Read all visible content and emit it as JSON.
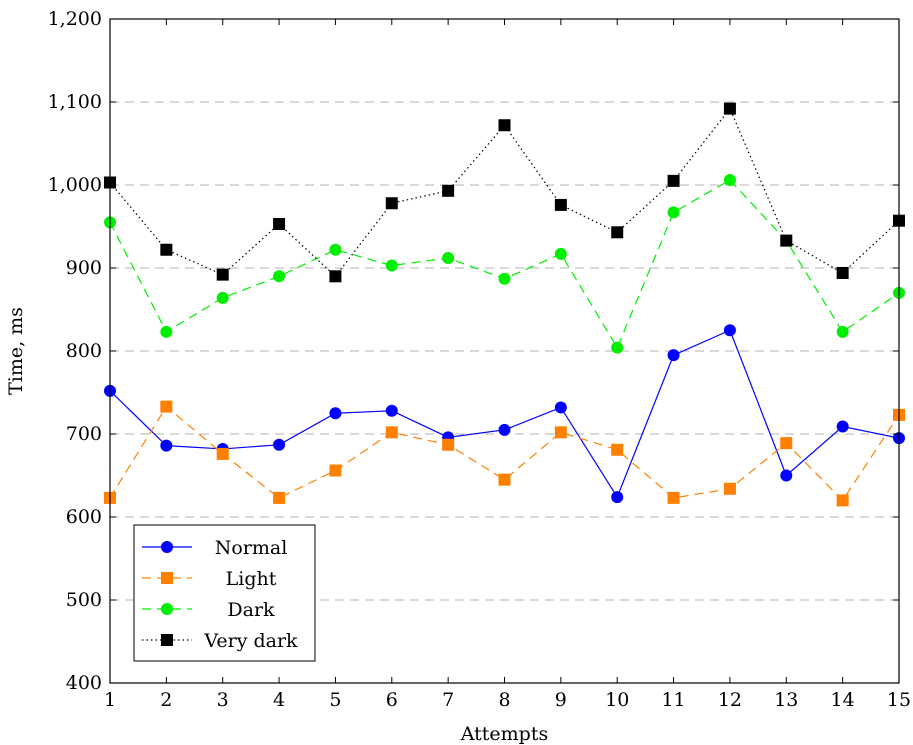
{
  "chart_data": {
    "type": "line",
    "title": "",
    "xlabel": "Attempts",
    "ylabel": "Time, ms",
    "xlim": [
      1,
      15
    ],
    "ylim": [
      400,
      1200
    ],
    "x": [
      1,
      2,
      3,
      4,
      5,
      6,
      7,
      8,
      9,
      10,
      11,
      12,
      13,
      14,
      15
    ],
    "x_ticks": [
      "1",
      "2",
      "3",
      "4",
      "5",
      "6",
      "7",
      "8",
      "9",
      "10",
      "11",
      "12",
      "13",
      "14",
      "15"
    ],
    "y_ticks": [
      400,
      500,
      600,
      700,
      800,
      900,
      1000,
      1100,
      1200
    ],
    "y_tick_labels": [
      "400",
      "500",
      "600",
      "700",
      "800",
      "900",
      "1,000",
      "1,100",
      "1,200"
    ],
    "grid": "horizontal-dashed",
    "legend_position": "bottom-left",
    "series": [
      {
        "name": "Normal",
        "color": "#0000ff",
        "marker": "circle",
        "line_style": "solid",
        "values": [
          752,
          686,
          682,
          687,
          725,
          728,
          696,
          705,
          732,
          624,
          795,
          825,
          650,
          709,
          695
        ]
      },
      {
        "name": "Light",
        "color": "#ff8000",
        "marker": "square",
        "line_style": "dashed",
        "values": [
          623,
          733,
          676,
          623,
          656,
          702,
          687,
          645,
          702,
          681,
          623,
          634,
          689,
          620,
          723
        ]
      },
      {
        "name": "Dark",
        "color": "#00ee00",
        "marker": "circle",
        "line_style": "dashed",
        "values": [
          955,
          823,
          864,
          890,
          922,
          903,
          912,
          887,
          917,
          804,
          967,
          1006,
          933,
          823,
          870
        ]
      },
      {
        "name": "Very dark",
        "color": "#000000",
        "marker": "square",
        "line_style": "dotted",
        "values": [
          1003,
          922,
          892,
          953,
          890,
          978,
          993,
          1072,
          976,
          943,
          1005,
          1092,
          933,
          894,
          957
        ]
      }
    ]
  }
}
